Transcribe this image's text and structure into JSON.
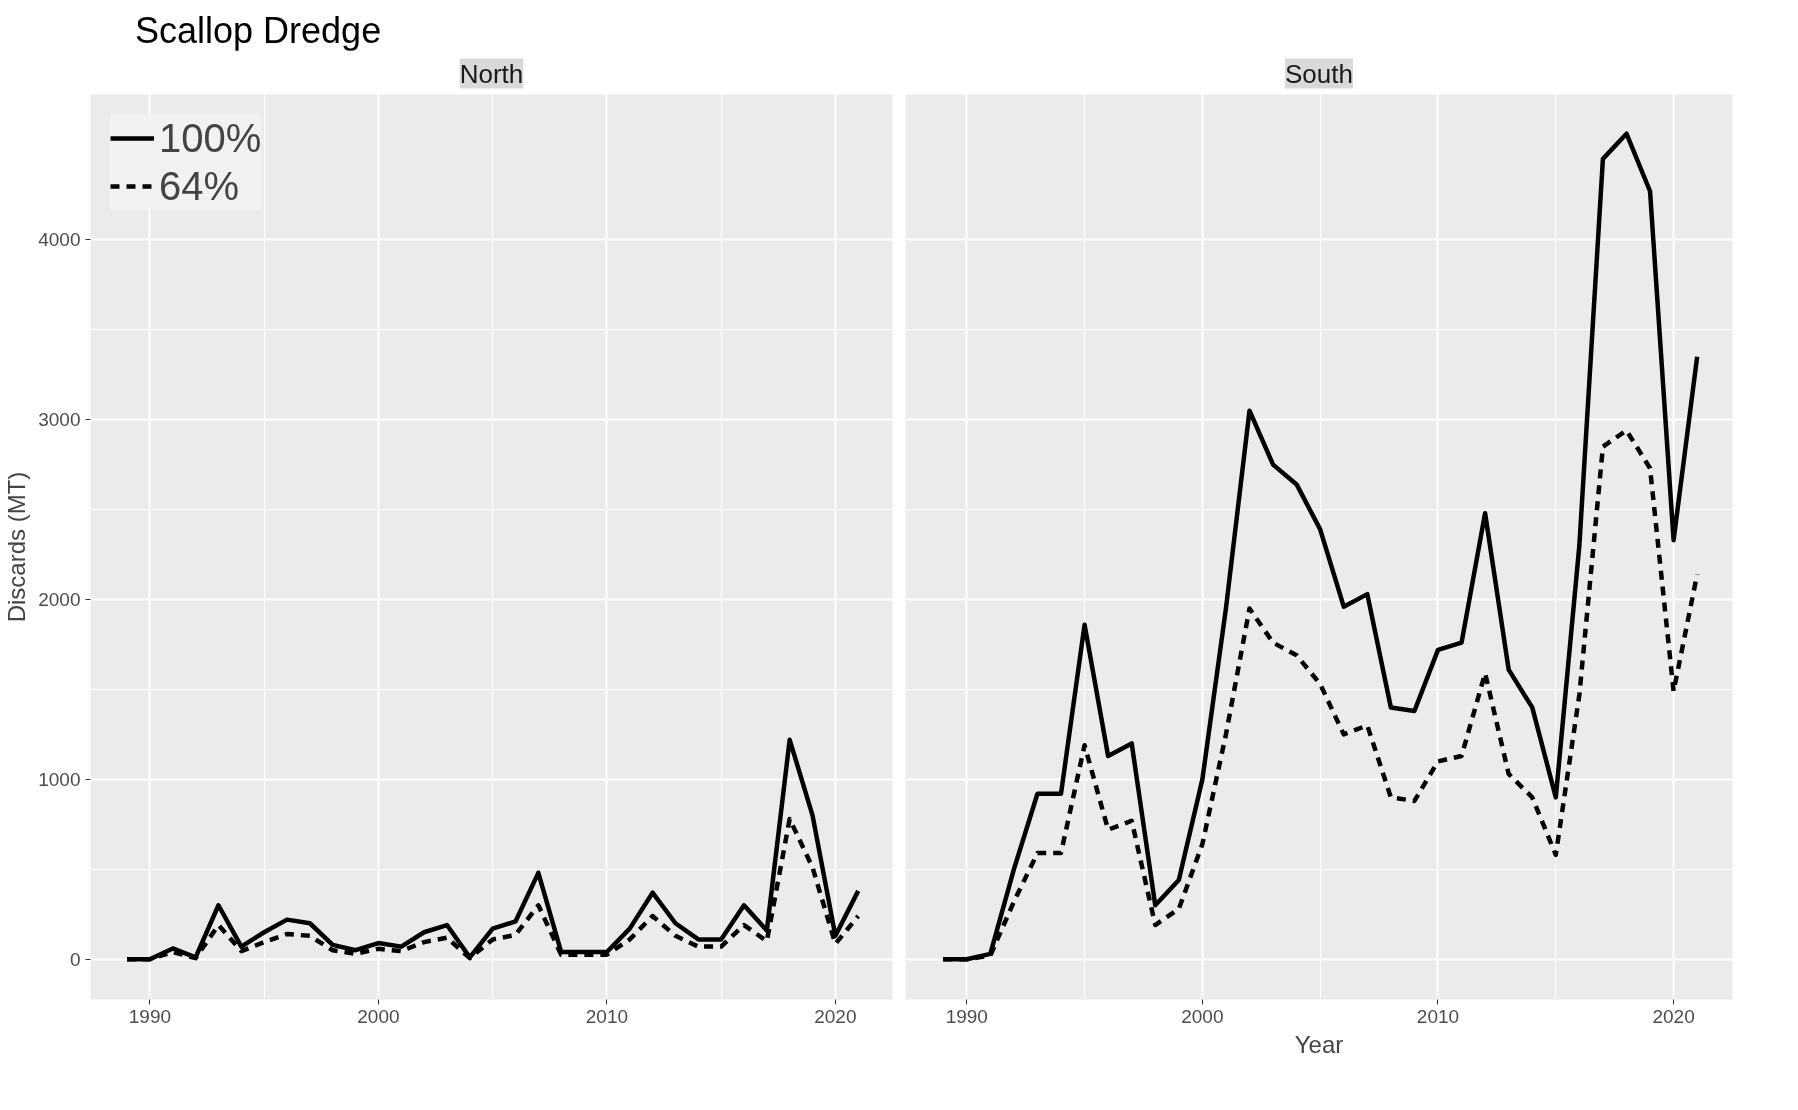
{
  "chart_data": [
    {
      "type": "line",
      "title": "North",
      "subtitle": "Scallop Dredge",
      "ylabel": "Discards (MT)",
      "x": [
        1989,
        1990,
        1991,
        1992,
        1993,
        1994,
        1995,
        1996,
        1997,
        1998,
        1999,
        2000,
        2001,
        2002,
        2003,
        2004,
        2005,
        2006,
        2007,
        2008,
        2009,
        2010,
        2011,
        2012,
        2013,
        2014,
        2015,
        2016,
        2017,
        2018,
        2019,
        2020,
        2021
      ],
      "series": [
        {
          "name": "100%",
          "color": "#000000",
          "line_style": "solid",
          "values": [
            0,
            0,
            60,
            10,
            300,
            70,
            150,
            220,
            200,
            80,
            50,
            90,
            70,
            150,
            190,
            10,
            170,
            210,
            480,
            40,
            40,
            40,
            170,
            370,
            200,
            110,
            110,
            300,
            160,
            1220,
            800,
            130,
            380
          ]
        },
        {
          "name": "64%",
          "color": "#000000",
          "line_style": "dashed",
          "values": [
            0,
            0,
            40,
            6,
            190,
            45,
            95,
            140,
            130,
            50,
            30,
            58,
            45,
            95,
            120,
            6,
            110,
            135,
            300,
            25,
            25,
            25,
            110,
            240,
            130,
            70,
            70,
            190,
            100,
            780,
            510,
            85,
            240
          ]
        }
      ],
      "xlim": [
        1987.4,
        2022.5
      ],
      "ylim": [
        -224,
        4808
      ],
      "xticks": [
        1990,
        2000,
        2010,
        2020
      ],
      "yticks": [
        0,
        1000,
        2000,
        3000,
        4000
      ],
      "grid": true,
      "legend": "top left",
      "marker": "none"
    },
    {
      "type": "line",
      "title": "South",
      "xlabel": "Year",
      "x": [
        1989,
        1990,
        1991,
        1992,
        1993,
        1994,
        1995,
        1996,
        1997,
        1998,
        1999,
        2000,
        2001,
        2002,
        2003,
        2004,
        2005,
        2006,
        2007,
        2008,
        2009,
        2010,
        2011,
        2012,
        2013,
        2014,
        2015,
        2016,
        2017,
        2018,
        2019,
        2020,
        2021
      ],
      "series": [
        {
          "color": "#000000",
          "line_style": "solid",
          "values": [
            0,
            0,
            30,
            500,
            920,
            920,
            1860,
            1130,
            1200,
            300,
            440,
            1000,
            1950,
            3050,
            2750,
            2640,
            2390,
            1960,
            2030,
            1400,
            1380,
            1720,
            1760,
            2480,
            1610,
            1400,
            900,
            2300,
            4450,
            4590,
            4270,
            2330,
            3350
          ]
        },
        {
          "color": "#000000",
          "line_style": "dashed",
          "values": [
            0,
            0,
            20,
            320,
            590,
            590,
            1190,
            720,
            770,
            190,
            280,
            640,
            1250,
            1950,
            1760,
            1690,
            1530,
            1250,
            1300,
            900,
            880,
            1100,
            1130,
            1590,
            1030,
            900,
            580,
            1470,
            2850,
            2940,
            2730,
            1490,
            2140
          ]
        }
      ],
      "xlim": [
        1987.4,
        2022.5
      ],
      "ylim": [
        -224,
        4808
      ],
      "xticks": [
        1990,
        2000,
        2010,
        2020
      ],
      "yticks": [
        0,
        1000,
        2000,
        3000,
        4000
      ],
      "grid": true,
      "tick_labels": "x",
      "legend": false,
      "marker": "none"
    }
  ]
}
